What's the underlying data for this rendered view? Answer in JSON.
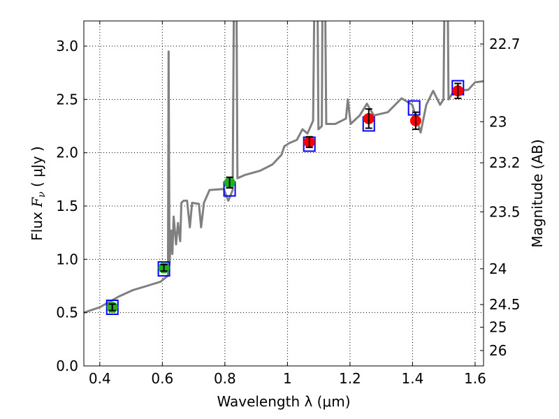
{
  "chart_data": {
    "type": "scatter",
    "xlabel": "Wavelength  λ (μm)",
    "ylabel": "Flux  F_ν  ( μJy )",
    "ylabel_parts": {
      "pre": "Flux  ",
      "sym": "F",
      "sub": "ν",
      "post": "  ( μJy )"
    },
    "y2label": "Magnitude (AB)",
    "xlim": [
      0.349,
      1.627
    ],
    "ylim": [
      0,
      3.236
    ],
    "grid": true,
    "xticks": [
      0.4,
      0.6,
      0.8,
      1.0,
      1.2,
      1.4,
      1.6
    ],
    "xtick_labels": [
      "0.4",
      "0.6",
      "0.8",
      "1",
      "1.2",
      "1.4",
      "1.6"
    ],
    "yticks": [
      0,
      0.5,
      1,
      1.5,
      2,
      2.5,
      3
    ],
    "ytick_labels": [
      "0.0",
      "0.5",
      "1.0",
      "1.5",
      "2.0",
      "2.5",
      "3.0"
    ],
    "y2ticks": [
      22.7,
      23,
      23.2,
      23.5,
      24,
      24.5,
      25,
      26
    ],
    "y2tick_labels": [
      "22.7",
      "23",
      "23.2",
      "23.5",
      "24",
      "24.5",
      "25",
      "26"
    ],
    "colors": {
      "spectrum": "#808080",
      "green": "#22b022",
      "red": "#ff0000",
      "model": "#0000ff"
    },
    "spectrum": [
      [
        0.349,
        0.5
      ],
      [
        0.4,
        0.55
      ],
      [
        0.46,
        0.65
      ],
      [
        0.505,
        0.71
      ],
      [
        0.55,
        0.75
      ],
      [
        0.594,
        0.79
      ],
      [
        0.615,
        0.84
      ],
      [
        0.618,
        0.86
      ],
      [
        0.62,
        2.95
      ],
      [
        0.623,
        0.95
      ],
      [
        0.628,
        1.27
      ],
      [
        0.632,
        1.05
      ],
      [
        0.636,
        1.4
      ],
      [
        0.644,
        1.14
      ],
      [
        0.65,
        1.34
      ],
      [
        0.657,
        1.17
      ],
      [
        0.661,
        1.53
      ],
      [
        0.668,
        1.55
      ],
      [
        0.679,
        1.55
      ],
      [
        0.688,
        1.3
      ],
      [
        0.695,
        1.53
      ],
      [
        0.717,
        1.52
      ],
      [
        0.724,
        1.3
      ],
      [
        0.733,
        1.53
      ],
      [
        0.751,
        1.65
      ],
      [
        0.796,
        1.66
      ],
      [
        0.811,
        1.55
      ],
      [
        0.825,
        1.65
      ],
      [
        0.83,
        4.0
      ],
      [
        0.836,
        4.0
      ],
      [
        0.84,
        1.76
      ],
      [
        0.863,
        1.79
      ],
      [
        0.912,
        1.83
      ],
      [
        0.952,
        1.89
      ],
      [
        0.981,
        1.98
      ],
      [
        0.99,
        2.06
      ],
      [
        1.006,
        2.09
      ],
      [
        1.03,
        2.12
      ],
      [
        1.048,
        2.22
      ],
      [
        1.064,
        2.18
      ],
      [
        1.082,
        2.3
      ],
      [
        1.088,
        4.0
      ],
      [
        1.095,
        4.0
      ],
      [
        1.099,
        2.22
      ],
      [
        1.11,
        2.25
      ],
      [
        1.113,
        4.0
      ],
      [
        1.119,
        4.0
      ],
      [
        1.124,
        2.27
      ],
      [
        1.153,
        2.27
      ],
      [
        1.187,
        2.32
      ],
      [
        1.193,
        2.5
      ],
      [
        1.202,
        2.27
      ],
      [
        1.231,
        2.35
      ],
      [
        1.254,
        2.46
      ],
      [
        1.276,
        2.35
      ],
      [
        1.321,
        2.38
      ],
      [
        1.365,
        2.51
      ],
      [
        1.399,
        2.45
      ],
      [
        1.426,
        2.19
      ],
      [
        1.444,
        2.45
      ],
      [
        1.466,
        2.58
      ],
      [
        1.488,
        2.45
      ],
      [
        1.499,
        2.5
      ],
      [
        1.504,
        4.0
      ],
      [
        1.511,
        4.0
      ],
      [
        1.515,
        2.5
      ],
      [
        1.533,
        2.58
      ],
      [
        1.578,
        2.59
      ],
      [
        1.6,
        2.66
      ],
      [
        1.627,
        2.67
      ]
    ],
    "green_points": [
      {
        "x": 0.44,
        "y": 0.55,
        "err": 0.03
      },
      {
        "x": 0.605,
        "y": 0.92,
        "err": 0.03
      },
      {
        "x": 0.815,
        "y": 1.72,
        "err": 0.05
      }
    ],
    "red_points": [
      {
        "x": 1.07,
        "y": 2.1,
        "err": 0.05
      },
      {
        "x": 1.26,
        "y": 2.32,
        "err": 0.09
      },
      {
        "x": 1.41,
        "y": 2.3,
        "err": 0.08
      },
      {
        "x": 1.545,
        "y": 2.58,
        "err": 0.07
      }
    ],
    "model_points": [
      {
        "x": 0.44,
        "y": 0.55
      },
      {
        "x": 0.605,
        "y": 0.91
      },
      {
        "x": 0.815,
        "y": 1.66
      },
      {
        "x": 1.07,
        "y": 2.08
      },
      {
        "x": 1.26,
        "y": 2.27
      },
      {
        "x": 1.405,
        "y": 2.42
      },
      {
        "x": 1.545,
        "y": 2.61
      }
    ]
  }
}
